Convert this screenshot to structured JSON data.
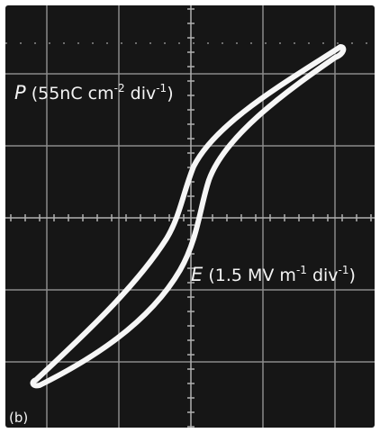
{
  "panel_label": "(b)",
  "y_label": {
    "symbol": "P",
    "unit": "(55nC cm",
    "exp1": "-2",
    "mid": " div",
    "exp2": "-1",
    "close": ")"
  },
  "x_label": {
    "symbol": "E",
    "unit": "(1.5 MV m",
    "exp1": "-1",
    "mid": " div",
    "exp2": "-1",
    "close": ")"
  }
}
